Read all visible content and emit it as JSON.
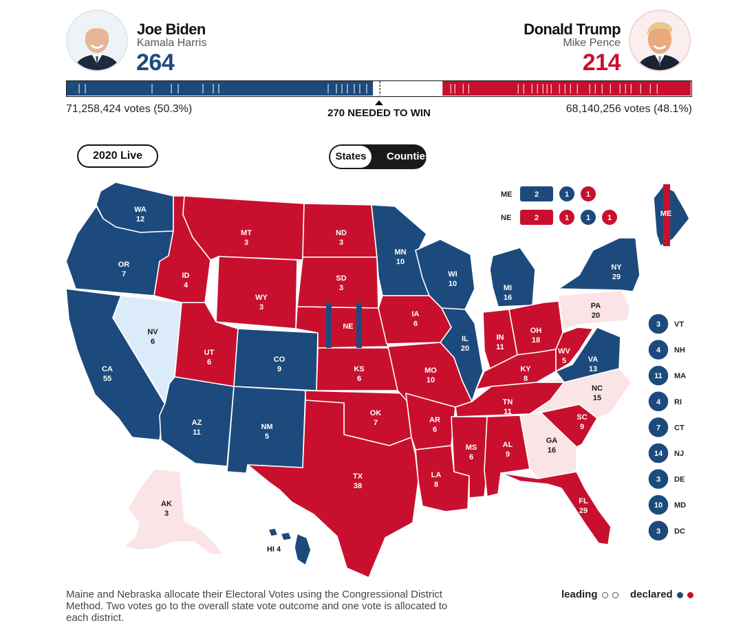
{
  "biden": {
    "name": "Joe Biden",
    "running_mate": "Kamala Harris",
    "electoral_votes": "264",
    "popular_votes": "71,258,424 votes (50.3%)",
    "color": "#1c4a7c"
  },
  "trump": {
    "name": "Donald Trump",
    "running_mate": "Mike Pence",
    "electoral_votes": "214",
    "popular_votes": "68,140,256 votes (48.1%)",
    "color": "#c8102e"
  },
  "threshold": "270 NEEDED TO WIN",
  "controls": {
    "year_button": "2020 Live",
    "toggle_states": "States",
    "toggle_counties": "Counties"
  },
  "colors": {
    "dem_declared": "#1c4a7c",
    "rep_declared": "#c8102e",
    "dem_leading": "#dcebfa",
    "rep_leading": "#fbe4e6"
  },
  "states": [
    {
      "abbr": "WA",
      "ev": "12",
      "status": "dem"
    },
    {
      "abbr": "OR",
      "ev": "7",
      "status": "dem"
    },
    {
      "abbr": "CA",
      "ev": "55",
      "status": "dem"
    },
    {
      "abbr": "NV",
      "ev": "6",
      "status": "dem-leading"
    },
    {
      "abbr": "ID",
      "ev": "4",
      "status": "rep"
    },
    {
      "abbr": "MT",
      "ev": "3",
      "status": "rep"
    },
    {
      "abbr": "WY",
      "ev": "3",
      "status": "rep"
    },
    {
      "abbr": "UT",
      "ev": "6",
      "status": "rep"
    },
    {
      "abbr": "CO",
      "ev": "9",
      "status": "dem"
    },
    {
      "abbr": "AZ",
      "ev": "11",
      "status": "dem"
    },
    {
      "abbr": "NM",
      "ev": "5",
      "status": "dem"
    },
    {
      "abbr": "ND",
      "ev": "3",
      "status": "rep"
    },
    {
      "abbr": "SD",
      "ev": "3",
      "status": "rep"
    },
    {
      "abbr": "NE",
      "ev": "",
      "status": "rep"
    },
    {
      "abbr": "KS",
      "ev": "6",
      "status": "rep"
    },
    {
      "abbr": "OK",
      "ev": "7",
      "status": "rep"
    },
    {
      "abbr": "TX",
      "ev": "38",
      "status": "rep"
    },
    {
      "abbr": "MN",
      "ev": "10",
      "status": "dem"
    },
    {
      "abbr": "IA",
      "ev": "6",
      "status": "rep"
    },
    {
      "abbr": "MO",
      "ev": "10",
      "status": "rep"
    },
    {
      "abbr": "AR",
      "ev": "6",
      "status": "rep"
    },
    {
      "abbr": "LA",
      "ev": "8",
      "status": "rep"
    },
    {
      "abbr": "WI",
      "ev": "10",
      "status": "dem"
    },
    {
      "abbr": "IL",
      "ev": "20",
      "status": "dem"
    },
    {
      "abbr": "MI",
      "ev": "16",
      "status": "dem"
    },
    {
      "abbr": "IN",
      "ev": "11",
      "status": "rep"
    },
    {
      "abbr": "OH",
      "ev": "18",
      "status": "rep"
    },
    {
      "abbr": "KY",
      "ev": "8",
      "status": "rep"
    },
    {
      "abbr": "TN",
      "ev": "11",
      "status": "rep"
    },
    {
      "abbr": "MS",
      "ev": "6",
      "status": "rep"
    },
    {
      "abbr": "AL",
      "ev": "9",
      "status": "rep"
    },
    {
      "abbr": "GA",
      "ev": "16",
      "status": "rep-leading"
    },
    {
      "abbr": "FL",
      "ev": "29",
      "status": "rep"
    },
    {
      "abbr": "SC",
      "ev": "9",
      "status": "rep"
    },
    {
      "abbr": "NC",
      "ev": "15",
      "status": "rep-leading"
    },
    {
      "abbr": "VA",
      "ev": "13",
      "status": "dem"
    },
    {
      "abbr": "WV",
      "ev": "5",
      "status": "rep"
    },
    {
      "abbr": "PA",
      "ev": "20",
      "status": "rep-leading"
    },
    {
      "abbr": "NY",
      "ev": "29",
      "status": "dem"
    },
    {
      "abbr": "ME",
      "ev": "",
      "status": "dem"
    },
    {
      "abbr": "AK",
      "ev": "3",
      "status": "rep-leading"
    },
    {
      "abbr": "HI",
      "ev": "4",
      "status": "dem"
    }
  ],
  "split_states": [
    {
      "abbr": "ME",
      "statewide": "2",
      "statewide_status": "dem",
      "districts": [
        {
          "ev": "1",
          "status": "dem"
        },
        {
          "ev": "1",
          "status": "rep"
        }
      ]
    },
    {
      "abbr": "NE",
      "statewide": "2",
      "statewide_status": "rep",
      "districts": [
        {
          "ev": "1",
          "status": "rep"
        },
        {
          "ev": "1",
          "status": "dem"
        },
        {
          "ev": "1",
          "status": "rep"
        }
      ]
    }
  ],
  "small_states": [
    {
      "abbr": "VT",
      "ev": "3",
      "status": "dem"
    },
    {
      "abbr": "NH",
      "ev": "4",
      "status": "dem"
    },
    {
      "abbr": "MA",
      "ev": "11",
      "status": "dem"
    },
    {
      "abbr": "RI",
      "ev": "4",
      "status": "dem"
    },
    {
      "abbr": "CT",
      "ev": "7",
      "status": "dem"
    },
    {
      "abbr": "NJ",
      "ev": "14",
      "status": "dem"
    },
    {
      "abbr": "DE",
      "ev": "3",
      "status": "dem"
    },
    {
      "abbr": "MD",
      "ev": "10",
      "status": "dem"
    },
    {
      "abbr": "DC",
      "ev": "3",
      "status": "dem"
    }
  ],
  "note": "Maine and Nebraska allocate their Electoral Votes using the Congressional District Method. Two votes go to the overall state vote outcome and one vote is allocated to each district.",
  "legend": {
    "leading": "leading",
    "declared": "declared"
  }
}
